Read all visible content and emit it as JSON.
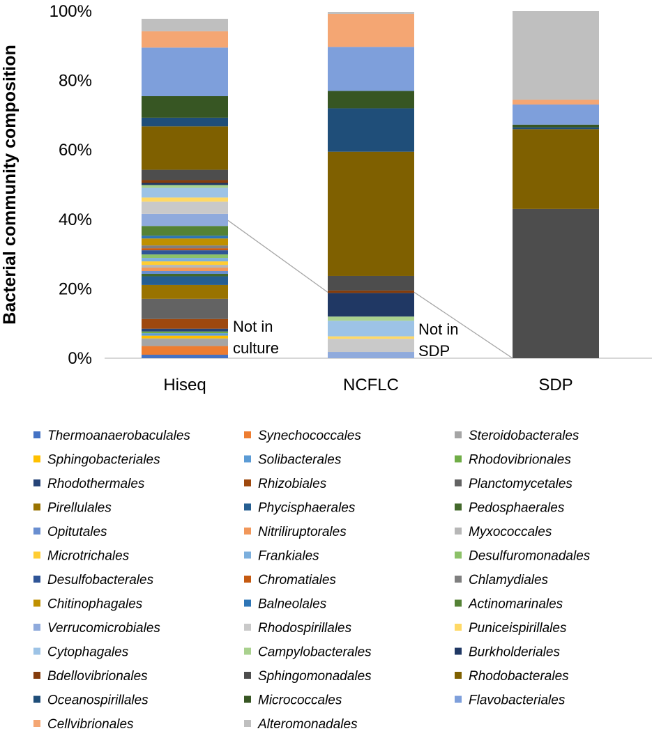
{
  "chart_data": {
    "type": "bar",
    "stacked": true,
    "ylabel": "Bacterial community composition",
    "xlabel": "",
    "ylim": [
      0,
      100
    ],
    "yticks": [
      "0%",
      "20%",
      "40%",
      "60%",
      "80%",
      "100%"
    ],
    "categories": [
      "Hiseq",
      "NCFLC",
      "SDP"
    ],
    "series": [
      {
        "name": "Thermoanaerobaculales",
        "color": "#4472C4",
        "values": [
          1.0,
          0,
          0
        ]
      },
      {
        "name": "Synechococcales",
        "color": "#ED7D31",
        "values": [
          2.5,
          0,
          0
        ]
      },
      {
        "name": "Steroidobacterales",
        "color": "#A5A5A5",
        "values": [
          2.2,
          0,
          0
        ]
      },
      {
        "name": "Sphingobacteriales",
        "color": "#FFC000",
        "values": [
          0.8,
          0,
          0
        ]
      },
      {
        "name": "Solibacterales",
        "color": "#5B9BD5",
        "values": [
          0.7,
          0,
          0
        ]
      },
      {
        "name": "Rhodovibrionales",
        "color": "#70AD47",
        "values": [
          0.5,
          0,
          0
        ]
      },
      {
        "name": "Rhodothermales",
        "color": "#264478",
        "values": [
          0.8,
          0,
          0
        ]
      },
      {
        "name": "Rhizobiales",
        "color": "#9E480E",
        "values": [
          2.8,
          0,
          0
        ]
      },
      {
        "name": "Planctomycetales",
        "color": "#636363",
        "values": [
          5.8,
          0,
          0
        ]
      },
      {
        "name": "Pirellulales",
        "color": "#997300",
        "values": [
          4.0,
          0,
          0
        ]
      },
      {
        "name": "Phycisphaerales",
        "color": "#255E91",
        "values": [
          2.5,
          0,
          0
        ]
      },
      {
        "name": "Pedosphaerales",
        "color": "#43682B",
        "values": [
          0.7,
          0,
          0
        ]
      },
      {
        "name": "Opitutales",
        "color": "#698ED0",
        "values": [
          0.8,
          0,
          0
        ]
      },
      {
        "name": "Nitriliruptorales",
        "color": "#F1975A",
        "values": [
          1.0,
          0,
          0
        ]
      },
      {
        "name": "Myxococcales",
        "color": "#B7B7B7",
        "values": [
          0.8,
          0,
          0
        ]
      },
      {
        "name": "Microtrichales",
        "color": "#FFCD33",
        "values": [
          1.0,
          0,
          0
        ]
      },
      {
        "name": "Frankiales",
        "color": "#7CAFDD",
        "values": [
          1.0,
          0,
          0
        ]
      },
      {
        "name": "Desulfuromonadales",
        "color": "#8CC168",
        "values": [
          1.0,
          0,
          0
        ]
      },
      {
        "name": "Desulfobacterales",
        "color": "#2F5597",
        "values": [
          1.2,
          0,
          0
        ]
      },
      {
        "name": "Chromatiales",
        "color": "#C55A11",
        "values": [
          0.6,
          0,
          0
        ]
      },
      {
        "name": "Chlamydiales",
        "color": "#7F7F7F",
        "values": [
          0.8,
          0,
          0
        ]
      },
      {
        "name": "Chitinophagales",
        "color": "#BF9000",
        "values": [
          2.0,
          0,
          0
        ]
      },
      {
        "name": "Balneolales",
        "color": "#2E75B6",
        "values": [
          0.8,
          0,
          0
        ]
      },
      {
        "name": "Actinomarinales",
        "color": "#548235",
        "values": [
          2.8,
          0,
          0
        ]
      },
      {
        "name": "Verrucomicrobiales",
        "color": "#8FAADC",
        "values": [
          3.5,
          1.8,
          0
        ]
      },
      {
        "name": "Rhodospirillales",
        "color": "#C9C9C9",
        "values": [
          3.5,
          3.8,
          0
        ]
      },
      {
        "name": "Puniceispirillales",
        "color": "#FFD966",
        "values": [
          1.2,
          0.7,
          0
        ]
      },
      {
        "name": "Cytophagales",
        "color": "#9DC3E6",
        "values": [
          2.8,
          4.5,
          0
        ]
      },
      {
        "name": "Campylobacterales",
        "color": "#A9D18E",
        "values": [
          0.8,
          1.2,
          0
        ]
      },
      {
        "name": "Burkholderiales",
        "color": "#203864",
        "values": [
          0.6,
          6.8,
          0
        ]
      },
      {
        "name": "Bdellovibrionales",
        "color": "#843C0C",
        "values": [
          0.8,
          0.7,
          0
        ]
      },
      {
        "name": "Sphingomonadales",
        "color": "#4D4D4D",
        "values": [
          3.0,
          4.2,
          43.0
        ]
      },
      {
        "name": "Rhodobacterales",
        "color": "#7F6000",
        "values": [
          12.5,
          35.8,
          23.0
        ]
      },
      {
        "name": "Oceanospirillales",
        "color": "#1F4E79",
        "values": [
          2.5,
          12.5,
          0.5
        ]
      },
      {
        "name": "Micrococcales",
        "color": "#375623",
        "values": [
          6.2,
          5.0,
          0.8
        ]
      },
      {
        "name": "Flavobacteriales",
        "color": "#7E9FDB",
        "values": [
          14.0,
          12.7,
          5.8
        ]
      },
      {
        "name": "Cellvibrionales",
        "color": "#F4A673",
        "values": [
          4.7,
          9.5,
          1.4
        ]
      },
      {
        "name": "Alteromonadales",
        "color": "#BFBFBF",
        "values": [
          3.6,
          0.6,
          25.5
        ]
      }
    ],
    "annotations": [
      {
        "lines": [
          "Not in",
          "culture"
        ],
        "category": "Hiseq"
      },
      {
        "lines": [
          "Not in",
          "SDP"
        ],
        "category": "NCFLC"
      }
    ],
    "connectors": [
      {
        "from_category": "Hiseq",
        "from_value": 39.7,
        "to_category": "NCFLC",
        "to_value": 19.0
      },
      {
        "from_category": "NCFLC",
        "from_value": 19.0,
        "to_category": "SDP",
        "to_value": 0
      }
    ],
    "legend_position": "bottom"
  }
}
